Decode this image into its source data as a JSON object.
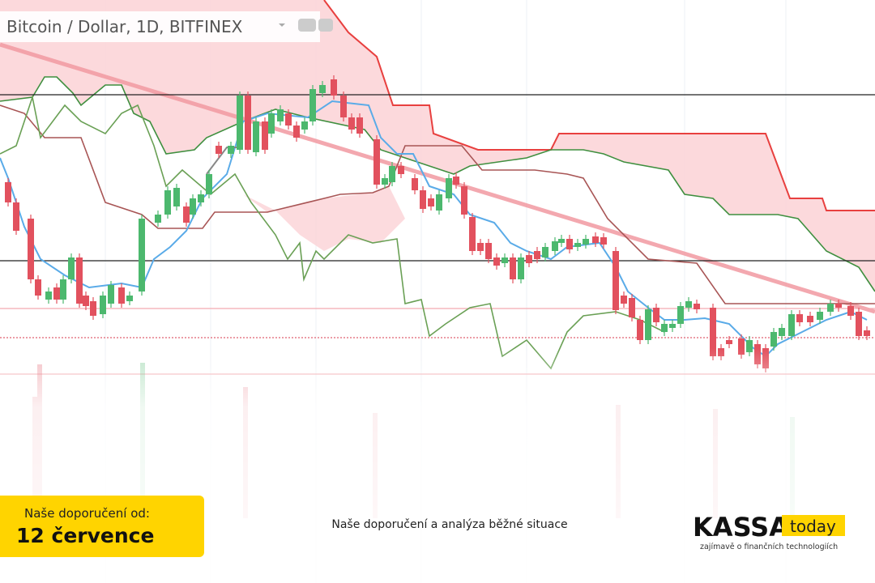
{
  "header": {
    "title": "Bitcoin / Dollar, 1D, BITFINEX"
  },
  "banner": {
    "label": "Naše doporučení od:",
    "date": "12 července"
  },
  "caption": "Naše doporučení a analýza běžné situace",
  "logo": {
    "name": "KASSA",
    "badge": "today",
    "tagline": "zajímavě o finančních technologiích"
  }
}
